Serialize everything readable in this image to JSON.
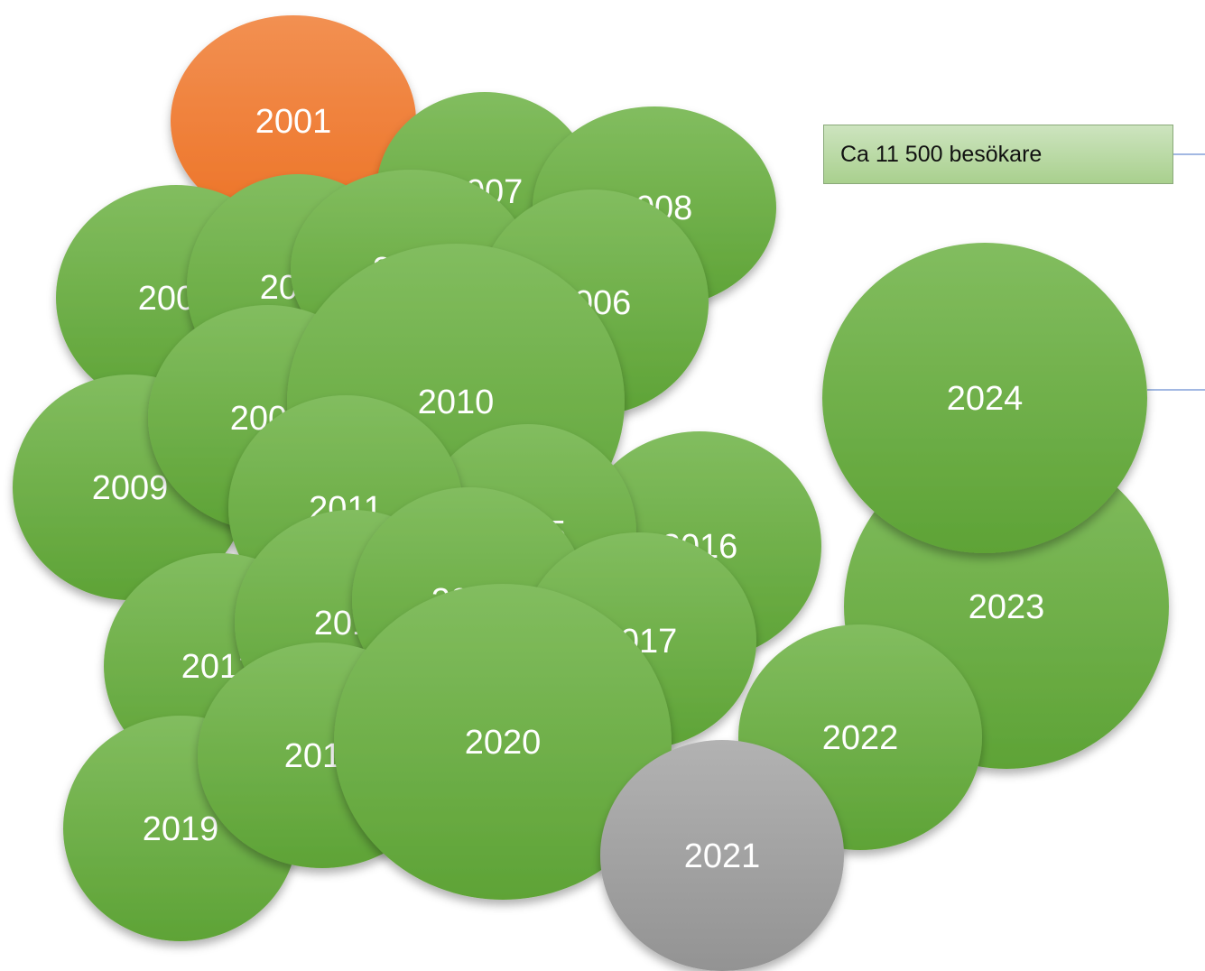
{
  "colors": {
    "green_top": "#82bd5f",
    "green_bottom": "#5ea336",
    "orange_top": "#f29052",
    "orange_bottom": "#ed7326",
    "gray_top": "#b2b2b2",
    "gray_bottom": "#939393",
    "connector": "#4472c4",
    "text": "#ffffff"
  },
  "callout": {
    "text": "Ca 11 500 besökare"
  },
  "bubbles": [
    {
      "label": "2001",
      "color": "orange"
    },
    {
      "label": "2007",
      "color": "green"
    },
    {
      "label": "2008",
      "color": "green"
    },
    {
      "label": "2003",
      "color": "green"
    },
    {
      "label": "2004",
      "color": "green"
    },
    {
      "label": "2005",
      "color": "green"
    },
    {
      "label": "2006",
      "color": "green"
    },
    {
      "label": "2009",
      "color": "green"
    },
    {
      "label": "2002",
      "color": "green"
    },
    {
      "label": "2010",
      "color": "green"
    },
    {
      "label": "2016",
      "color": "green"
    },
    {
      "label": "2015",
      "color": "green"
    },
    {
      "label": "2011",
      "color": "green"
    },
    {
      "label": "2012",
      "color": "green"
    },
    {
      "label": "2013",
      "color": "green"
    },
    {
      "label": "2014",
      "color": "green"
    },
    {
      "label": "2017",
      "color": "green"
    },
    {
      "label": "2019",
      "color": "green"
    },
    {
      "label": "2018",
      "color": "green"
    },
    {
      "label": "2020",
      "color": "green"
    },
    {
      "label": "2023",
      "color": "green"
    },
    {
      "label": "2022",
      "color": "green"
    },
    {
      "label": "2021",
      "color": "gray"
    },
    {
      "label": "2024",
      "color": "green"
    }
  ]
}
